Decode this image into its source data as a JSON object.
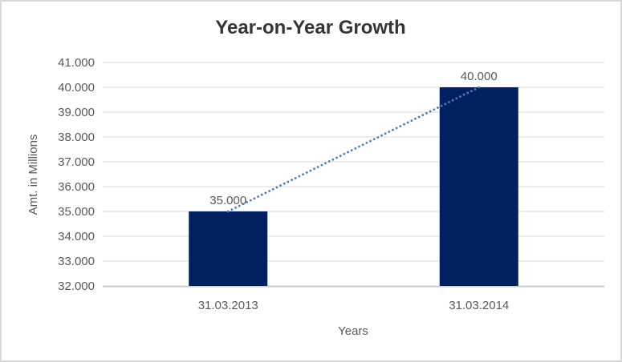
{
  "chart_data": {
    "type": "bar",
    "title": "Year-on-Year Growth",
    "categories": [
      "31.03.2013",
      "31.03.2014"
    ],
    "values": [
      35000,
      40000
    ],
    "value_labels": [
      "35.000",
      "40.000"
    ],
    "xlabel": "Years",
    "ylabel": "Amt. in Millions",
    "ylim": [
      32000,
      41000
    ],
    "ytick_step": 1000,
    "ytick_labels": [
      "32.000",
      "33.000",
      "34.000",
      "35.000",
      "36.000",
      "37.000",
      "38.000",
      "39.000",
      "40.000",
      "41.000"
    ],
    "grid": true,
    "legend": "none",
    "trendline": {
      "type": "linear",
      "style": "dotted",
      "color": "#4A7EBB"
    },
    "colors": {
      "bar": "#002060",
      "gridline": "#D9D9D9",
      "axis_line": "#BFBFBF",
      "tick_text": "#595959",
      "axis_title_text": "#595959",
      "data_label_text": "#595959",
      "title_text": "#363636",
      "chart_border": "#D9D9D9",
      "background": "#FFFFFF"
    }
  }
}
